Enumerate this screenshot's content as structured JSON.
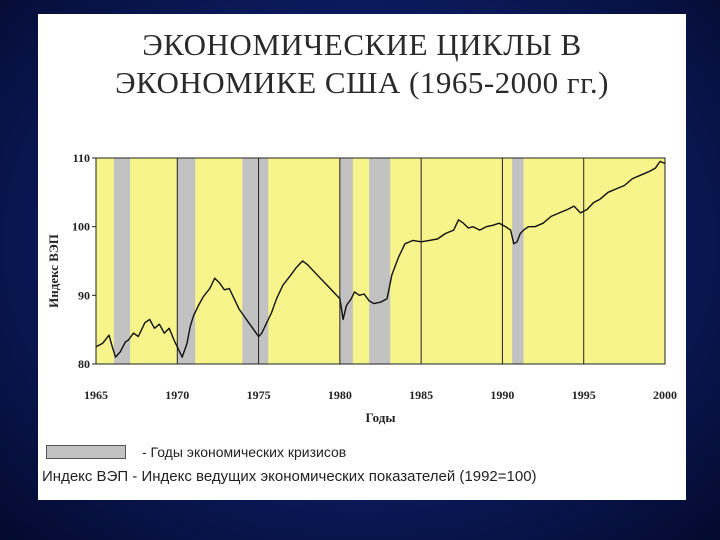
{
  "slide": {
    "title_line1": "ЭКОНОМИЧЕСКИЕ ЦИКЛЫ В",
    "title_line2": "ЭКОНОМИКЕ США  (1965-2000 гг.)"
  },
  "legend": {
    "recession_label": "- Годы экономических кризисов",
    "index_note": "Индекс ВЭП - Индекс ведущих экономических показателей (1992=100)"
  },
  "colors": {
    "plot_bg": "#f7f48c",
    "recession": "#c2c2c2",
    "line": "#111111",
    "grid": "#222222"
  },
  "chart_data": {
    "type": "line",
    "xlabel": "Годы",
    "ylabel": "Индекс ВЭП",
    "xlim": [
      1965,
      2000
    ],
    "ylim": [
      80,
      110
    ],
    "xticks": [
      1965,
      1970,
      1975,
      1980,
      1985,
      1990,
      1995,
      2000
    ],
    "yticks": [
      80,
      90,
      100,
      110
    ],
    "grid": "vertical",
    "recessions": [
      [
        1966.1,
        1967.1
      ],
      [
        1970.0,
        1971.1
      ],
      [
        1974.0,
        1975.6
      ],
      [
        1980.0,
        1980.8
      ],
      [
        1981.8,
        1983.1
      ],
      [
        1990.6,
        1991.3
      ]
    ],
    "series": [
      {
        "x": [
          1965.0,
          1965.4,
          1965.8,
          1966.0,
          1966.2,
          1966.5,
          1966.8,
          1967.0,
          1967.3,
          1967.6,
          1968.0,
          1968.3,
          1968.6,
          1968.9,
          1969.2,
          1969.5,
          1969.8,
          1970.1,
          1970.3,
          1970.6,
          1970.8,
          1971.0,
          1971.3,
          1971.6,
          1972.0,
          1972.3,
          1972.6,
          1972.9,
          1973.2,
          1973.5,
          1973.8,
          1974.1,
          1974.4,
          1974.7,
          1975.0,
          1975.2,
          1975.5,
          1975.8,
          1976.1,
          1976.5,
          1977.0,
          1977.3,
          1977.7,
          1978.0,
          1978.4,
          1978.8,
          1979.2,
          1979.6,
          1980.0,
          1980.2,
          1980.4,
          1980.7,
          1980.9,
          1981.2,
          1981.5,
          1981.8,
          1982.1,
          1982.5,
          1982.9,
          1983.2,
          1983.6,
          1984.0,
          1984.5,
          1985.0,
          1985.5,
          1986.0,
          1986.5,
          1987.0,
          1987.3,
          1987.6,
          1987.9,
          1988.2,
          1988.6,
          1989.0,
          1989.4,
          1989.8,
          1990.2,
          1990.5,
          1990.7,
          1990.9,
          1991.1,
          1991.3,
          1991.6,
          1992.0,
          1992.5,
          1993.0,
          1993.5,
          1994.0,
          1994.4,
          1994.8,
          1995.2,
          1995.6,
          1996.0,
          1996.5,
          1997.0,
          1997.5,
          1998.0,
          1998.5,
          1999.0,
          1999.4,
          1999.7,
          2000.0
        ],
        "y": [
          82.5,
          83.0,
          84.2,
          82.5,
          81.0,
          81.8,
          83.2,
          83.5,
          84.5,
          84.0,
          86.0,
          86.5,
          85.2,
          85.8,
          84.5,
          85.2,
          83.5,
          82.0,
          81.0,
          83.0,
          85.5,
          87.0,
          88.5,
          89.8,
          91.0,
          92.5,
          91.8,
          90.8,
          91.0,
          89.5,
          88.0,
          87.0,
          86.0,
          85.0,
          84.0,
          84.5,
          86.0,
          87.5,
          89.5,
          91.5,
          93.0,
          94.0,
          95.0,
          94.5,
          93.5,
          92.5,
          91.5,
          90.5,
          89.5,
          86.5,
          88.5,
          89.5,
          90.5,
          90.0,
          90.2,
          89.2,
          88.8,
          89.0,
          89.5,
          93.0,
          95.5,
          97.5,
          98.0,
          97.8,
          98.0,
          98.2,
          99.0,
          99.5,
          101.0,
          100.5,
          99.8,
          100.0,
          99.5,
          100.0,
          100.2,
          100.5,
          100.0,
          99.5,
          97.5,
          97.8,
          99.0,
          99.5,
          100.0,
          100.0,
          100.5,
          101.5,
          102.0,
          102.5,
          103.0,
          102.0,
          102.5,
          103.5,
          104.0,
          105.0,
          105.5,
          106.0,
          107.0,
          107.5,
          108.0,
          108.5,
          109.5,
          109.2
        ]
      }
    ]
  }
}
